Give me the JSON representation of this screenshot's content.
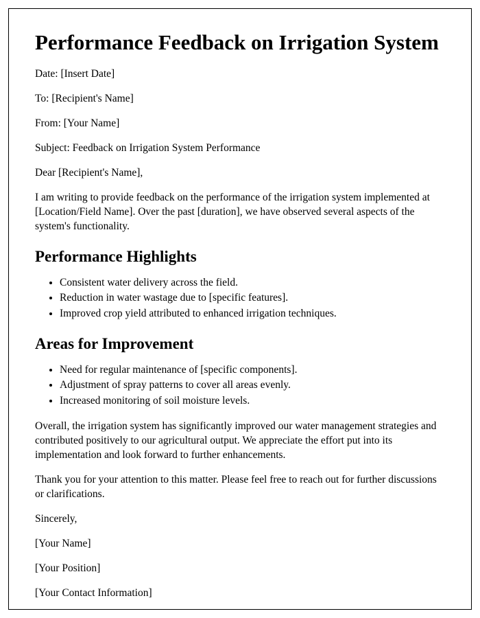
{
  "title": "Performance Feedback on Irrigation System",
  "meta": {
    "date": "Date: [Insert Date]",
    "to": "To: [Recipient's Name]",
    "from": "From: [Your Name]",
    "subject": "Subject: Feedback on Irrigation System Performance"
  },
  "salutation": "Dear [Recipient's Name],",
  "intro": "I am writing to provide feedback on the performance of the irrigation system implemented at [Location/Field Name]. Over the past [duration], we have observed several aspects of the system's functionality.",
  "highlights": {
    "heading": "Performance Highlights",
    "items": [
      "Consistent water delivery across the field.",
      "Reduction in water wastage due to [specific features].",
      "Improved crop yield attributed to enhanced irrigation techniques."
    ]
  },
  "improvements": {
    "heading": "Areas for Improvement",
    "items": [
      "Need for regular maintenance of [specific components].",
      "Adjustment of spray patterns to cover all areas evenly.",
      "Increased monitoring of soil moisture levels."
    ]
  },
  "summary": "Overall, the irrigation system has significantly improved our water management strategies and contributed positively to our agricultural output. We appreciate the effort put into its implementation and look forward to further enhancements.",
  "thanks": "Thank you for your attention to this matter. Please feel free to reach out for further discussions or clarifications.",
  "closing": {
    "signoff": "Sincerely,",
    "name": "[Your Name]",
    "position": "[Your Position]",
    "contact": "[Your Contact Information]"
  }
}
